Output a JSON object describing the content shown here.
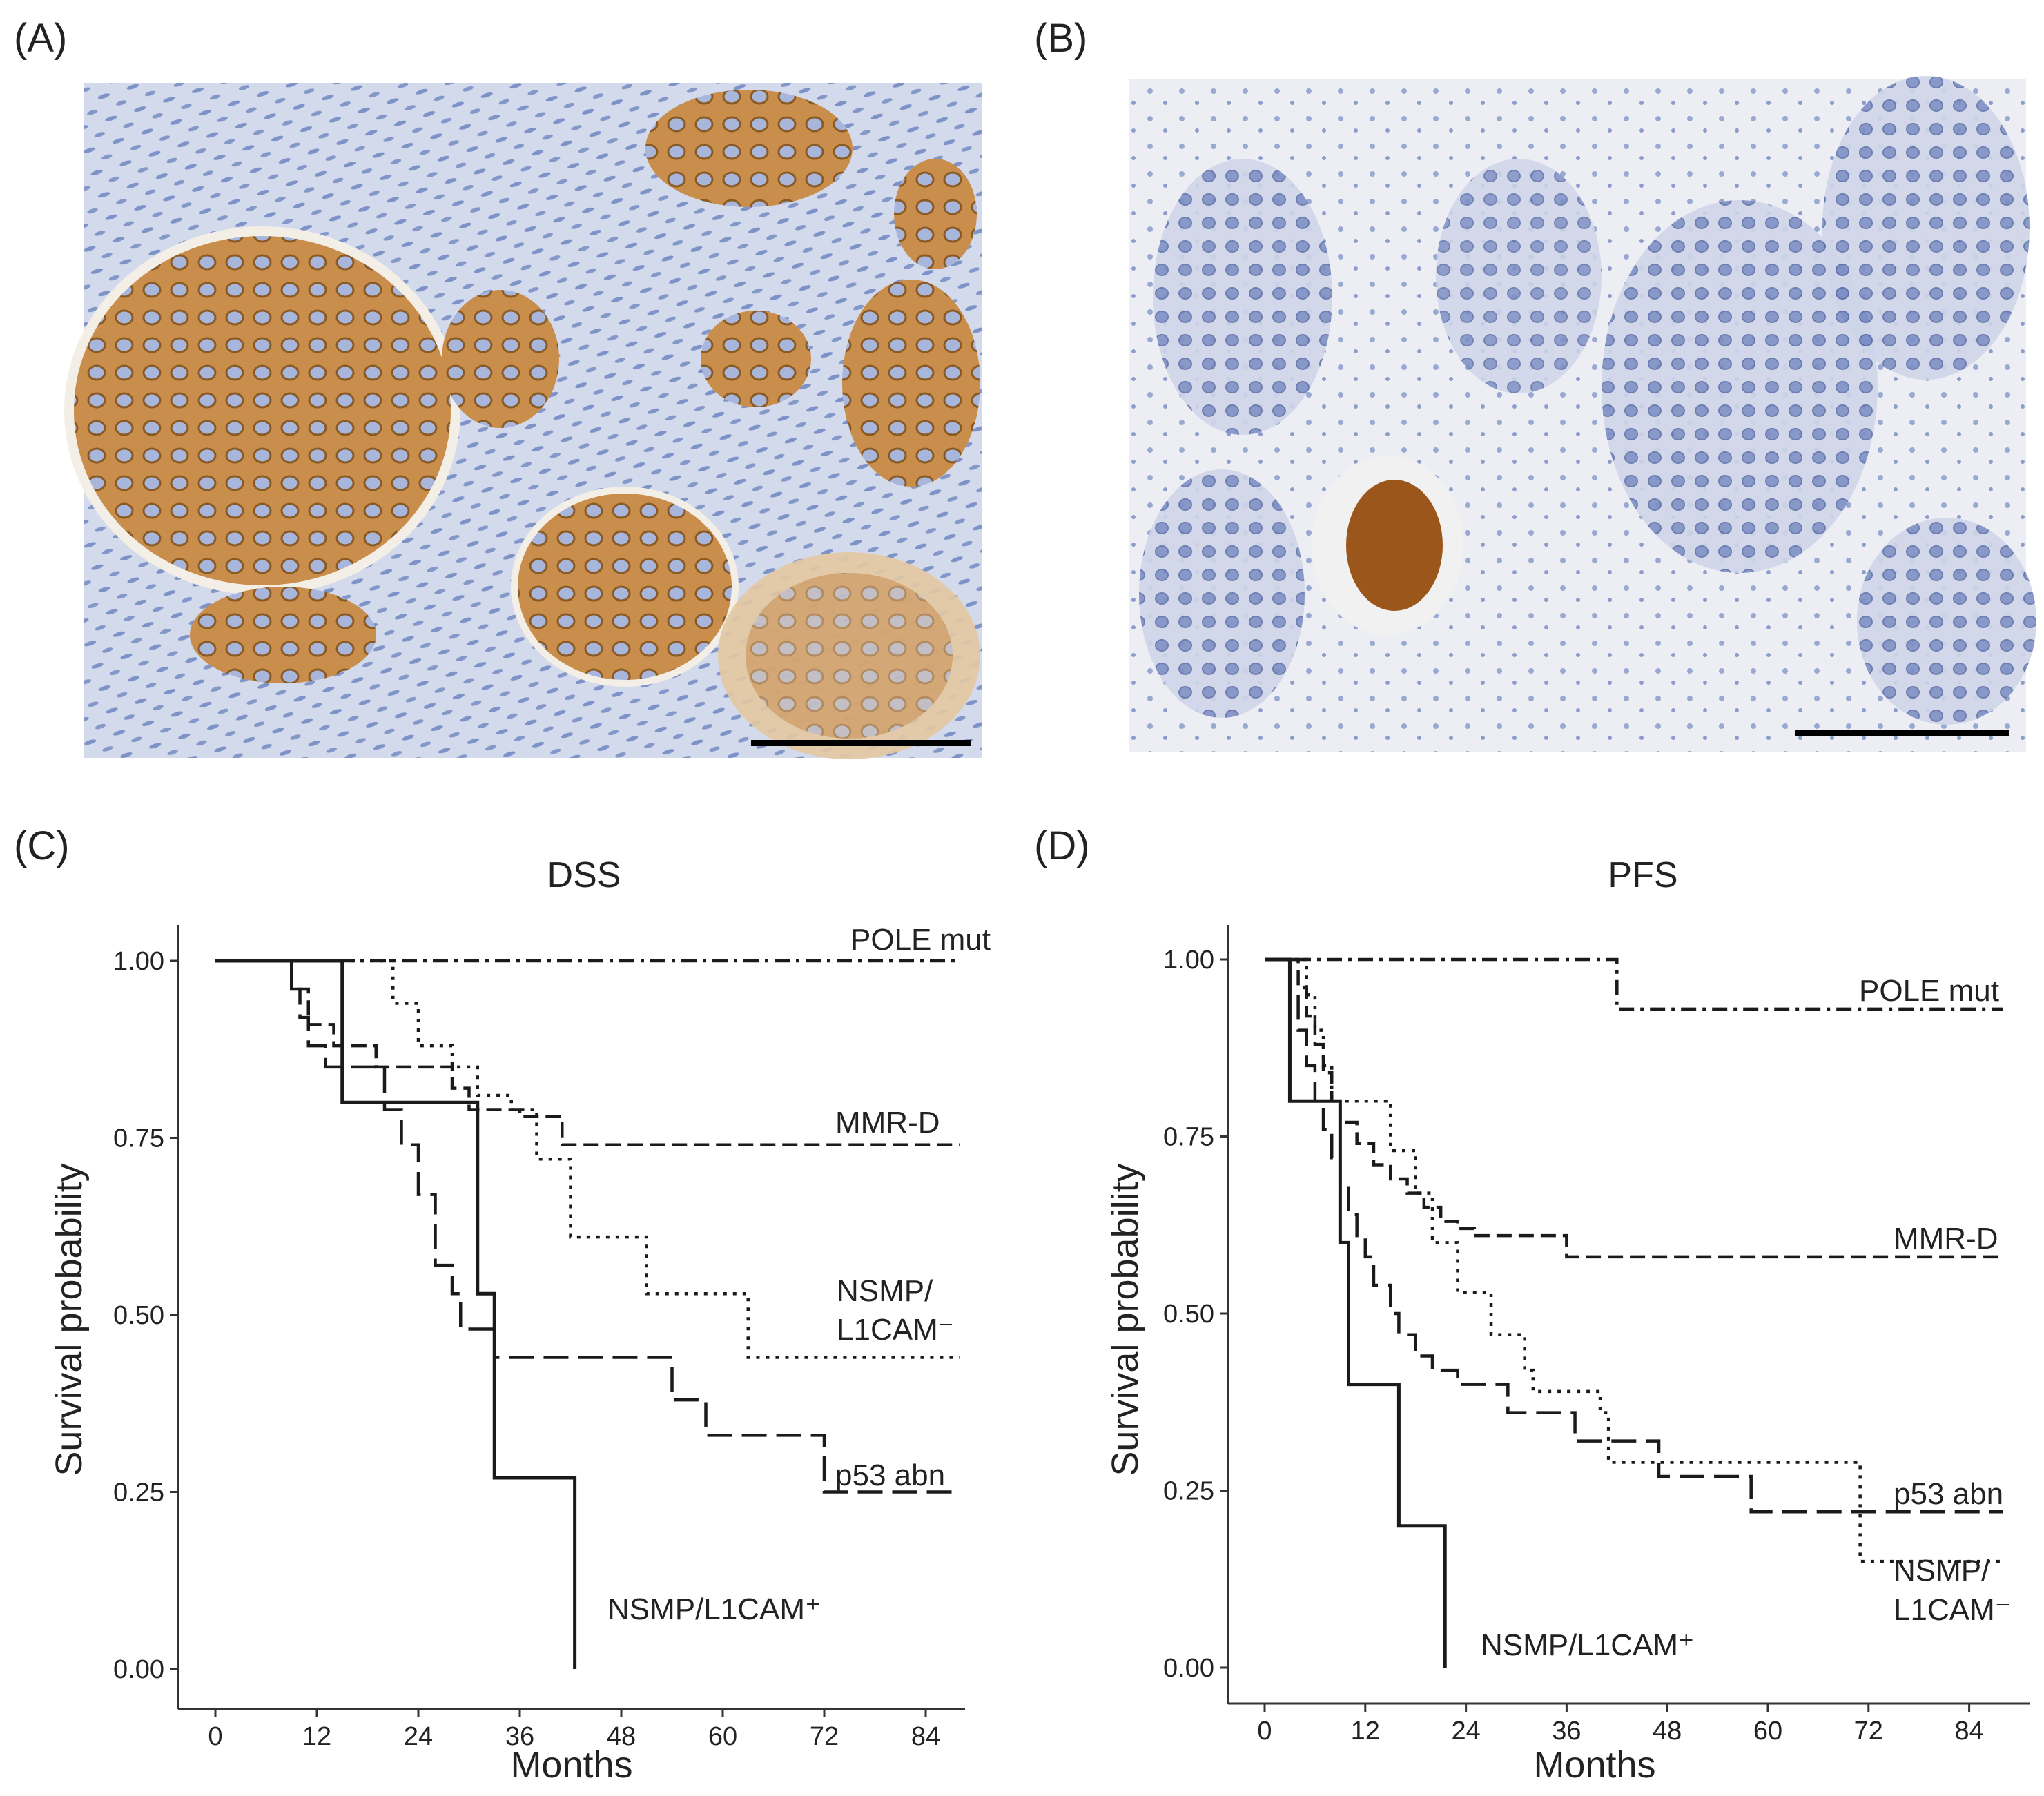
{
  "panels": {
    "a": {
      "letter": "(A)"
    },
    "b": {
      "letter": "(B)"
    },
    "c": {
      "letter": "(C)"
    },
    "d": {
      "letter": "(D)"
    }
  },
  "colors": {
    "stroma": "#cfd7ea",
    "nuclei": "#6a83bf",
    "stain_brown": "#b0732e",
    "tissue_pale": "#e9ecf4",
    "curve": "#1a1a1a"
  },
  "chart_data": [
    {
      "type": "line",
      "subtype": "kaplan-meier step",
      "panel": "(C)",
      "title": "DSS",
      "xlabel": "Months",
      "ylabel": "Survival probability",
      "xlim": [
        0,
        88
      ],
      "ylim": [
        0,
        1
      ],
      "xticks": [
        0,
        12,
        24,
        36,
        48,
        60,
        72,
        84
      ],
      "yticks": [
        0.0,
        0.25,
        0.5,
        0.75,
        1.0
      ],
      "ytick_labels": [
        "0.00",
        "0.25",
        "0.50",
        "0.75",
        "1.00"
      ],
      "grid": false,
      "series": [
        {
          "name": "POLE mut",
          "style": "dashdot",
          "label_lines": [
            "POLE mut"
          ],
          "x": [
            0,
            88
          ],
          "y": [
            1.0,
            1.0
          ]
        },
        {
          "name": "MMR-D",
          "style": "dash-short",
          "label_lines": [
            "MMR-D"
          ],
          "x": [
            0,
            9,
            11,
            14,
            19,
            21,
            28,
            30,
            36,
            41,
            88
          ],
          "y": [
            1.0,
            0.96,
            0.91,
            0.88,
            0.85,
            0.85,
            0.82,
            0.79,
            0.78,
            0.74,
            0.74
          ]
        },
        {
          "name": "NSMP/ L1CAM⁻",
          "style": "dot",
          "label_lines": [
            "NSMP/",
            "L1CAM⁻"
          ],
          "x": [
            0,
            20,
            21,
            24,
            28,
            31,
            35,
            38,
            42,
            51,
            63,
            88
          ],
          "y": [
            1.0,
            1.0,
            0.94,
            0.88,
            0.85,
            0.81,
            0.79,
            0.72,
            0.61,
            0.53,
            0.44,
            0.44
          ]
        },
        {
          "name": "p53 abn",
          "style": "dash-long",
          "label_lines": [
            "p53 abn"
          ],
          "x": [
            0,
            9,
            10,
            11,
            13,
            20,
            22,
            24,
            26,
            28,
            29,
            33,
            50,
            54,
            58,
            72,
            88
          ],
          "y": [
            1.0,
            0.96,
            0.92,
            0.88,
            0.85,
            0.79,
            0.74,
            0.67,
            0.57,
            0.53,
            0.48,
            0.44,
            0.44,
            0.38,
            0.33,
            0.25,
            0.25
          ]
        },
        {
          "name": "NSMP/L1CAM⁺",
          "style": "solid",
          "label_lines": [
            "NSMP/L1CAM⁺"
          ],
          "x": [
            0,
            15,
            31,
            33,
            42.5,
            42.5
          ],
          "y": [
            1.0,
            0.8,
            0.53,
            0.27,
            0.27,
            0.0
          ]
        }
      ]
    },
    {
      "type": "line",
      "subtype": "kaplan-meier step",
      "panel": "(D)",
      "title": "PFS",
      "xlabel": "Months",
      "ylabel": "Survival probability",
      "xlim": [
        0,
        88
      ],
      "ylim": [
        0,
        1
      ],
      "xticks": [
        0,
        12,
        24,
        36,
        48,
        60,
        72,
        84
      ],
      "yticks": [
        0.0,
        0.25,
        0.5,
        0.75,
        1.0
      ],
      "ytick_labels": [
        "0.00",
        "0.25",
        "0.50",
        "0.75",
        "1.00"
      ],
      "grid": false,
      "series": [
        {
          "name": "POLE mut",
          "style": "dashdot",
          "label_lines": [
            "POLE mut"
          ],
          "x": [
            0,
            42,
            88
          ],
          "y": [
            1.0,
            0.93,
            0.93
          ]
        },
        {
          "name": "MMR-D",
          "style": "dash-short",
          "label_lines": [
            "MMR-D"
          ],
          "x": [
            0,
            4,
            5,
            6,
            7,
            8,
            9,
            11,
            13,
            15,
            17,
            19,
            21,
            23,
            25,
            36,
            88
          ],
          "y": [
            1.0,
            0.96,
            0.92,
            0.88,
            0.84,
            0.8,
            0.77,
            0.74,
            0.71,
            0.69,
            0.67,
            0.65,
            0.63,
            0.62,
            0.61,
            0.58,
            0.58
          ]
        },
        {
          "name": "NSMP/ L1CAM⁻",
          "style": "dot",
          "label_lines": [
            "NSMP/",
            "L1CAM⁻"
          ],
          "x": [
            0,
            5,
            6,
            7,
            8,
            13,
            15,
            18,
            20,
            23,
            27,
            31,
            32,
            40,
            41,
            68,
            71,
            88
          ],
          "y": [
            1.0,
            0.95,
            0.9,
            0.85,
            0.8,
            0.8,
            0.73,
            0.67,
            0.6,
            0.53,
            0.47,
            0.42,
            0.39,
            0.36,
            0.29,
            0.29,
            0.15,
            0.15
          ]
        },
        {
          "name": "p53 abn",
          "style": "dash-long",
          "label_lines": [
            "p53 abn"
          ],
          "x": [
            0,
            3,
            4,
            5,
            6,
            7,
            8,
            9,
            10,
            11,
            12,
            13,
            15,
            16,
            18,
            20,
            23,
            29,
            37,
            47,
            58,
            88
          ],
          "y": [
            1.0,
            0.95,
            0.9,
            0.85,
            0.8,
            0.76,
            0.72,
            0.68,
            0.64,
            0.61,
            0.58,
            0.54,
            0.5,
            0.47,
            0.44,
            0.42,
            0.4,
            0.36,
            0.32,
            0.27,
            0.22,
            0.22
          ]
        },
        {
          "name": "NSMP/L1CAM⁺",
          "style": "solid",
          "label_lines": [
            "NSMP/L1CAM⁺"
          ],
          "x": [
            0,
            3,
            9,
            10,
            16,
            21.5,
            21.5
          ],
          "y": [
            1.0,
            0.8,
            0.6,
            0.4,
            0.2,
            0.2,
            0.0
          ]
        }
      ]
    }
  ]
}
